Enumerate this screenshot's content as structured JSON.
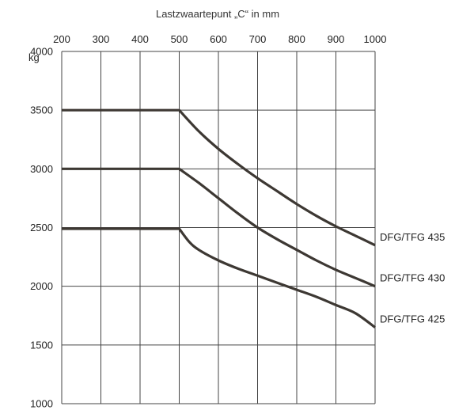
{
  "chart_data": {
    "type": "line",
    "title": "Lastzwaartepunt „C“ in mm",
    "xlabel": "Lastzwaartepunt „C“ in mm",
    "ylabel": "kg",
    "xlim": [
      200,
      1000
    ],
    "ylim": [
      1000,
      4000
    ],
    "x_ticks": [
      200,
      300,
      400,
      500,
      600,
      700,
      800,
      900,
      1000
    ],
    "y_ticks": [
      1000,
      1500,
      2000,
      2500,
      3000,
      3500,
      4000
    ],
    "x_axis_position": "top",
    "grid": true,
    "line_color": "#3d3833",
    "series": [
      {
        "name": "DFG/TFG 435",
        "x": [
          200,
          500,
          550,
          600,
          650,
          700,
          750,
          800,
          850,
          900,
          950,
          1000
        ],
        "y": [
          3500,
          3500,
          3320,
          3170,
          3040,
          2920,
          2810,
          2700,
          2600,
          2510,
          2430,
          2350
        ]
      },
      {
        "name": "DFG/TFG 430",
        "x": [
          200,
          500,
          550,
          600,
          650,
          700,
          750,
          800,
          850,
          900,
          950,
          1000
        ],
        "y": [
          3000,
          3000,
          2880,
          2750,
          2620,
          2500,
          2400,
          2310,
          2220,
          2140,
          2070,
          2000
        ]
      },
      {
        "name": "DFG/TFG 425",
        "x": [
          200,
          500,
          525,
          550,
          600,
          650,
          700,
          750,
          800,
          850,
          900,
          950,
          1000
        ],
        "y": [
          2490,
          2490,
          2380,
          2310,
          2220,
          2150,
          2090,
          2030,
          1970,
          1910,
          1840,
          1770,
          1650
        ]
      }
    ]
  }
}
